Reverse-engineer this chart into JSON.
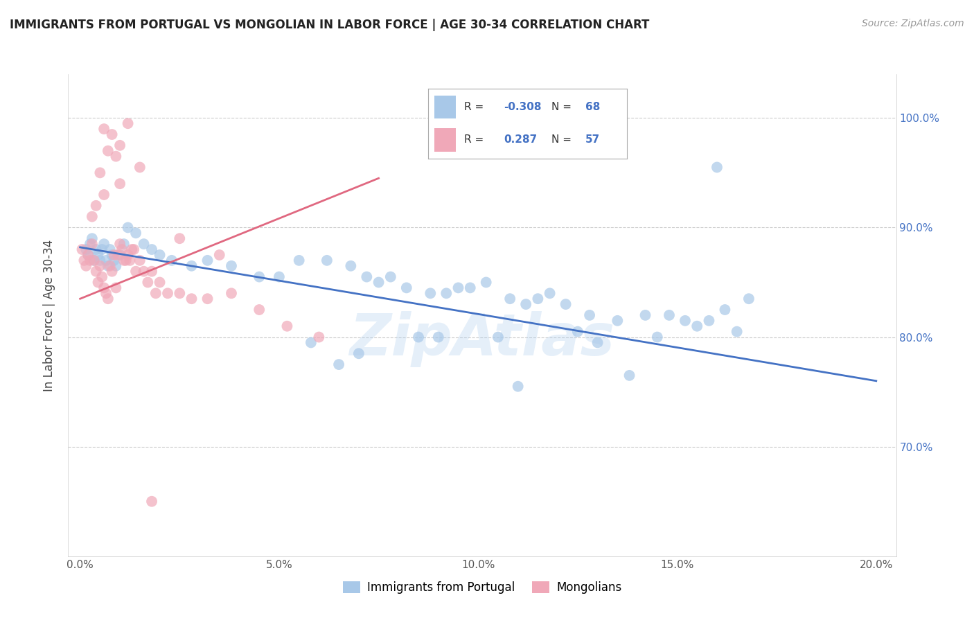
{
  "title": "IMMIGRANTS FROM PORTUGAL VS MONGOLIAN IN LABOR FORCE | AGE 30-34 CORRELATION CHART",
  "source": "Source: ZipAtlas.com",
  "xlabel_vals": [
    0.0,
    5.0,
    10.0,
    15.0,
    20.0
  ],
  "ylabel_vals": [
    70.0,
    80.0,
    90.0,
    100.0
  ],
  "xlim": [
    -0.3,
    20.5
  ],
  "ylim": [
    60.0,
    104.0
  ],
  "blue_color": "#a8c8e8",
  "pink_color": "#f0a8b8",
  "blue_line_color": "#4472c4",
  "pink_line_color": "#e06880",
  "blue_R": -0.308,
  "blue_N": 68,
  "pink_R": 0.287,
  "pink_N": 57,
  "blue_label": "Immigrants from Portugal",
  "pink_label": "Mongolians",
  "blue_scatter_x": [
    0.15,
    0.2,
    0.25,
    0.3,
    0.35,
    0.4,
    0.45,
    0.5,
    0.55,
    0.6,
    0.65,
    0.7,
    0.75,
    0.8,
    0.85,
    0.9,
    1.0,
    1.1,
    1.2,
    1.4,
    1.6,
    1.8,
    2.0,
    2.3,
    2.8,
    3.2,
    3.8,
    4.5,
    5.0,
    5.5,
    6.2,
    6.8,
    7.2,
    7.8,
    8.2,
    8.8,
    9.2,
    9.8,
    10.2,
    10.8,
    11.2,
    11.8,
    12.2,
    12.8,
    13.5,
    14.2,
    14.8,
    15.2,
    15.8,
    16.2,
    16.8,
    7.5,
    9.5,
    11.5,
    13.0,
    14.5,
    15.5,
    16.5,
    5.8,
    8.5,
    10.5,
    12.5,
    9.0,
    11.0,
    6.5,
    7.0,
    13.8,
    16.0
  ],
  "blue_scatter_y": [
    88.0,
    87.5,
    88.5,
    89.0,
    87.0,
    88.0,
    87.5,
    87.0,
    88.0,
    88.5,
    87.0,
    86.5,
    88.0,
    87.5,
    87.0,
    86.5,
    87.5,
    88.5,
    90.0,
    89.5,
    88.5,
    88.0,
    87.5,
    87.0,
    86.5,
    87.0,
    86.5,
    85.5,
    85.5,
    87.0,
    87.0,
    86.5,
    85.5,
    85.5,
    84.5,
    84.0,
    84.0,
    84.5,
    85.0,
    83.5,
    83.0,
    84.0,
    83.0,
    82.0,
    81.5,
    82.0,
    82.0,
    81.5,
    81.5,
    82.5,
    83.5,
    85.0,
    84.5,
    83.5,
    79.5,
    80.0,
    81.0,
    80.5,
    79.5,
    80.0,
    80.0,
    80.5,
    80.0,
    75.5,
    77.5,
    78.5,
    76.5,
    95.5
  ],
  "pink_scatter_x": [
    0.05,
    0.1,
    0.15,
    0.2,
    0.25,
    0.3,
    0.35,
    0.4,
    0.45,
    0.5,
    0.55,
    0.6,
    0.65,
    0.7,
    0.75,
    0.8,
    0.85,
    0.9,
    0.95,
    1.0,
    1.05,
    1.1,
    1.15,
    1.2,
    1.25,
    1.3,
    1.35,
    1.4,
    1.5,
    1.6,
    1.7,
    1.8,
    1.9,
    2.0,
    2.2,
    2.5,
    2.8,
    3.2,
    3.8,
    4.5,
    5.2,
    6.0,
    1.2,
    0.8,
    0.6,
    1.0,
    0.7,
    0.9,
    1.5,
    0.5,
    2.5,
    3.5,
    1.0,
    0.4,
    0.3,
    0.6,
    1.8
  ],
  "pink_scatter_y": [
    88.0,
    87.0,
    86.5,
    87.5,
    87.0,
    88.5,
    87.0,
    86.0,
    85.0,
    86.5,
    85.5,
    84.5,
    84.0,
    83.5,
    86.5,
    86.0,
    87.5,
    84.5,
    87.5,
    88.5,
    88.0,
    87.0,
    87.0,
    87.5,
    87.0,
    88.0,
    88.0,
    86.0,
    87.0,
    86.0,
    85.0,
    86.0,
    84.0,
    85.0,
    84.0,
    84.0,
    83.5,
    83.5,
    84.0,
    82.5,
    81.0,
    80.0,
    99.5,
    98.5,
    99.0,
    97.5,
    97.0,
    96.5,
    95.5,
    95.0,
    89.0,
    87.5,
    94.0,
    92.0,
    91.0,
    93.0,
    65.0
  ],
  "blue_trend_x": [
    0.0,
    20.0
  ],
  "blue_trend_y": [
    88.2,
    76.0
  ],
  "pink_trend_x": [
    0.0,
    7.5
  ],
  "pink_trend_y": [
    83.5,
    94.5
  ],
  "watermark": "ZipAtlas",
  "background_color": "#ffffff",
  "grid_color": "#cccccc"
}
